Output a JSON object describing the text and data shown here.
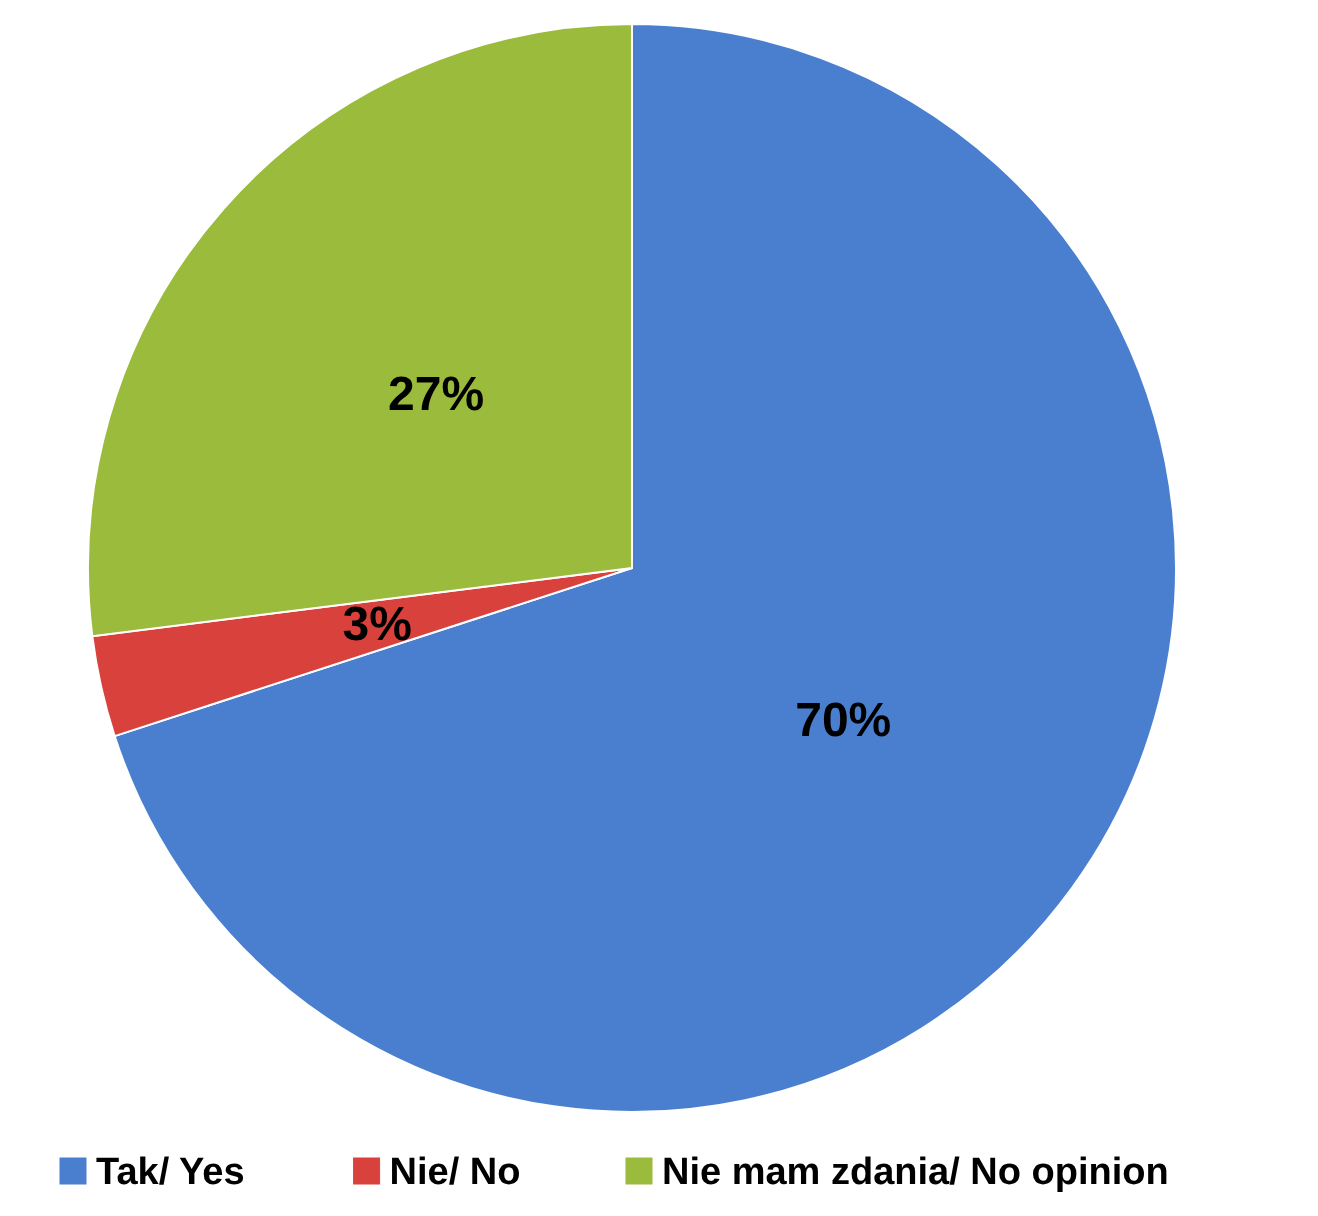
{
  "chart_data": {
    "type": "pie",
    "categories": [
      "Tak/ Yes",
      "Nie/ No",
      "Nie mam zdania/ No opinion"
    ],
    "values": [
      70,
      3,
      27
    ],
    "colors": [
      "#4a7fd0",
      "#d9423c",
      "#9bbb3c"
    ],
    "value_labels": [
      "70%",
      "3%",
      "27%"
    ],
    "legend": "bottom"
  }
}
